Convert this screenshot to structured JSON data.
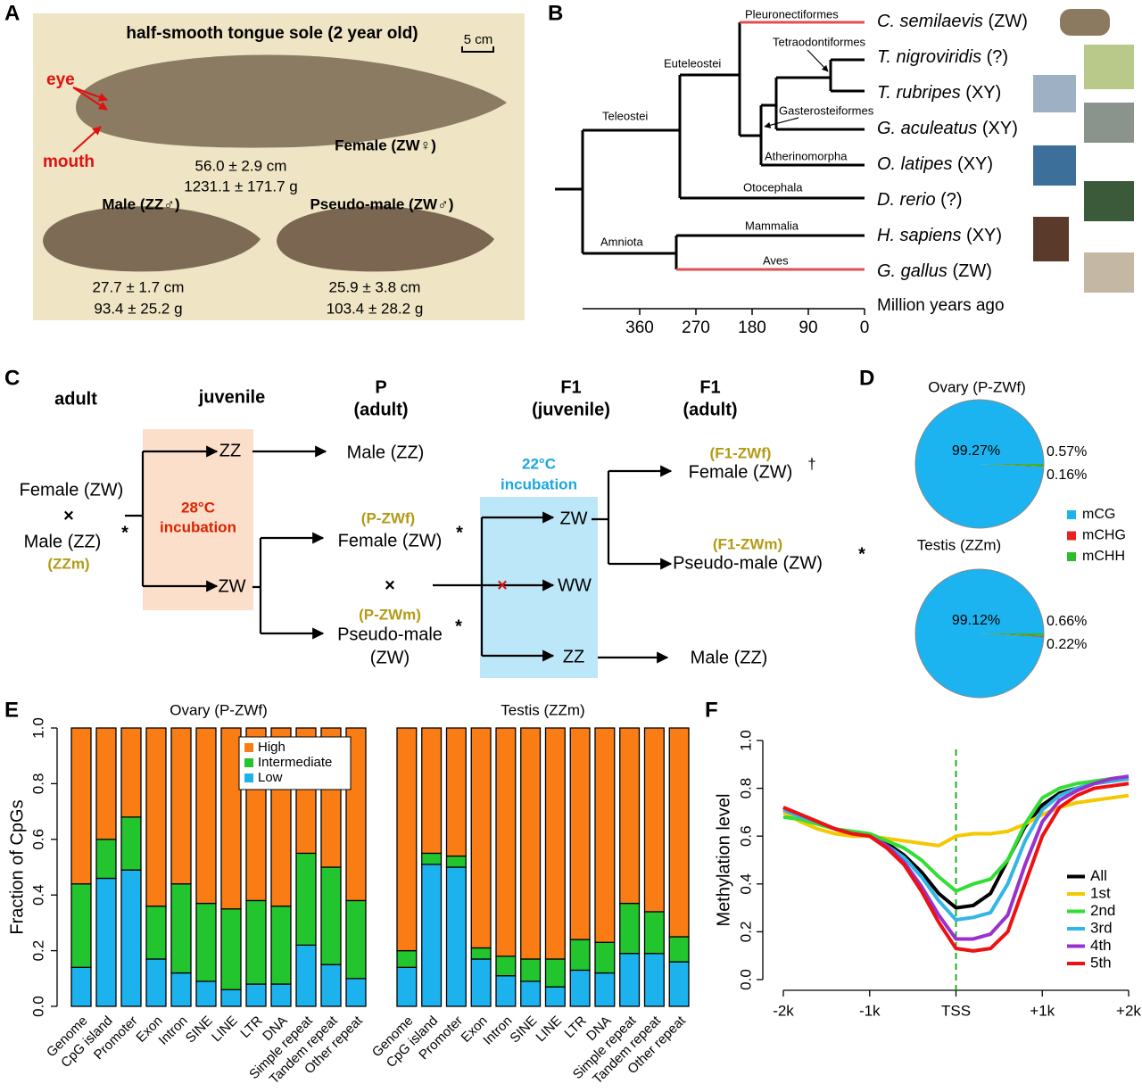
{
  "panel_labels": [
    "A",
    "B",
    "C",
    "D",
    "E",
    "F"
  ],
  "panel_a": {
    "title": "half-smooth tongue sole (2 year old)",
    "scale_bar": "5 cm",
    "eye": "eye",
    "mouth": "mouth",
    "fish": [
      {
        "label": "Female (ZW♀)",
        "length": "56.0 ± 2.9 cm",
        "weight": "1231.1 ± 171.7 g"
      },
      {
        "label": "Male (ZZ♂)",
        "length": "27.7 ± 1.7 cm",
        "weight": "93.4 ± 25.2 g"
      },
      {
        "label": "Pseudo-male (ZW♂)",
        "length": "25.9 ± 3.8 cm",
        "weight": "103.4 ± 28.2 g"
      }
    ]
  },
  "panel_b": {
    "leaves": [
      {
        "species": "C. semilaevis",
        "sex": "(ZW)"
      },
      {
        "species": "T. nigroviridis",
        "sex": "(?)"
      },
      {
        "species": "T. rubripes",
        "sex": "(XY)"
      },
      {
        "species": "G. aculeatus",
        "sex": "(XY)"
      },
      {
        "species": "O. latipes",
        "sex": "(XY)"
      },
      {
        "species": "D. rerio",
        "sex": "(?)"
      },
      {
        "species": "H. sapiens",
        "sex": "(XY)"
      },
      {
        "species": "G. gallus",
        "sex": "(ZW)"
      }
    ],
    "clades": [
      "Pleuronectiformes",
      "Tetraodontiformes",
      "Gasterosteiformes",
      "Atherinomorpha",
      "Euteleostei",
      "Teleostei",
      "Otocephala",
      "Amniota",
      "Mammalia",
      "Aves"
    ],
    "axis": {
      "label": "Million years ago",
      "ticks": [
        360,
        270,
        180,
        90,
        0
      ]
    }
  },
  "panel_c": {
    "headers": [
      "adult",
      "juvenile",
      "P",
      "(adult)",
      "F1",
      "(juvenile)",
      "F1",
      "(adult)"
    ],
    "parents": {
      "female": "Female (ZW)",
      "cross": "×",
      "male": "Male (ZZ)",
      "star": "*",
      "male_id": "(ZZm)"
    },
    "incubation_28": {
      "temp": "28°C",
      "label": "incubation"
    },
    "p_offspring": [
      "ZZ",
      "ZW"
    ],
    "p_adults": {
      "male": "Male (ZZ)",
      "female_id": "(P-ZWf)",
      "female": "Female (ZW)",
      "female_star": "*",
      "cross": "×",
      "pseudo_id": "(P-ZWm)",
      "pseudo": "Pseudo-male",
      "pseudo_star": "*",
      "pseudo_sex": "(ZW)"
    },
    "incubation_22": {
      "temp": "22°C",
      "label": "incubation"
    },
    "f1_offspring": [
      "ZW",
      "WW",
      "ZZ"
    ],
    "blocked": "×",
    "f1_adults": {
      "female_id": "(F1-ZWf)",
      "female": "Female (ZW)",
      "female_dagger": "†",
      "pseudo_id": "(F1-ZWm)",
      "pseudo": "Pseudo-male (ZW)",
      "pseudo_star": "*",
      "male": "Male (ZZ)"
    }
  },
  "chart_data": [
    {
      "type": "pie",
      "categories": [
        "mCG",
        "mCHG",
        "mCHH"
      ],
      "colors": [
        "#1cb4f0",
        "#e8231f",
        "#2bbd2b"
      ],
      "legend": "right",
      "series": [
        {
          "name": "Ovary (P-ZWf)",
          "values": [
            99.27,
            0.16,
            0.57
          ],
          "value_labels": [
            "99.27%",
            "0.16%",
            "0.57%"
          ]
        },
        {
          "name": "Testis (ZZm)",
          "values": [
            99.12,
            0.22,
            0.66
          ],
          "value_labels": [
            "99.12%",
            "0.22%",
            "0.66%"
          ]
        }
      ]
    },
    {
      "type": "bar",
      "stacked": true,
      "title": "Ovary (P-ZWf)",
      "ylabel": "Fraction of CpGs",
      "categories": [
        "Genome",
        "CpG island",
        "Promoter",
        "Exon",
        "Intron",
        "SINE",
        "LINE",
        "LTR",
        "DNA",
        "Simple repeat",
        "Tandem repeat",
        "Other repeat"
      ],
      "ylim": [
        0,
        1
      ],
      "yticks": [
        {
          "value": 0,
          "label": "0.0"
        },
        0.2,
        0.4,
        0.6,
        0.8,
        {
          "value": 1,
          "label": "1.0"
        }
      ],
      "legend": "top-right",
      "series": [
        {
          "name": "Low",
          "color": "#1cb2ee",
          "values": [
            0.14,
            0.46,
            0.49,
            0.17,
            0.12,
            0.09,
            0.06,
            0.08,
            0.08,
            0.22,
            0.15,
            0.1
          ]
        },
        {
          "name": "Intermediate",
          "color": "#22c52d",
          "values": [
            0.3,
            0.14,
            0.19,
            0.19,
            0.32,
            0.28,
            0.29,
            0.3,
            0.28,
            0.33,
            0.35,
            0.28
          ]
        },
        {
          "name": "High",
          "color": "#f97d14",
          "values": [
            0.56,
            0.4,
            0.32,
            0.64,
            0.56,
            0.63,
            0.65,
            0.62,
            0.64,
            0.45,
            0.5,
            0.62
          ]
        }
      ]
    },
    {
      "type": "bar",
      "stacked": true,
      "title": "Testis (ZZm)",
      "categories": [
        "Genome",
        "CpG island",
        "Promoter",
        "Exon",
        "Intron",
        "SINE",
        "LINE",
        "LTR",
        "DNA",
        "Simple repeat",
        "Tandem repeat",
        "Other repeat"
      ],
      "ylim": [
        0,
        1
      ],
      "series": [
        {
          "color": "#1cb2ee",
          "values": [
            0.14,
            0.51,
            0.5,
            0.17,
            0.11,
            0.09,
            0.07,
            0.13,
            0.12,
            0.19,
            0.19,
            0.16
          ]
        },
        {
          "color": "#22c52d",
          "values": [
            0.06,
            0.04,
            0.04,
            0.04,
            0.07,
            0.08,
            0.1,
            0.11,
            0.11,
            0.18,
            0.15,
            0.09
          ]
        },
        {
          "color": "#f97d14",
          "values": [
            0.8,
            0.45,
            0.46,
            0.79,
            0.82,
            0.83,
            0.83,
            0.76,
            0.77,
            0.63,
            0.66,
            0.75
          ]
        }
      ]
    },
    {
      "type": "line",
      "ylabel": "Methylation level",
      "x": [
        -2000,
        -1800,
        -1600,
        -1400,
        -1200,
        -1000,
        -800,
        -600,
        -400,
        -200,
        0,
        200,
        400,
        600,
        800,
        1000,
        1200,
        1400,
        1600,
        1800,
        2000
      ],
      "xlim": [
        -2000,
        2000
      ],
      "xticks": [
        {
          "value": -2000,
          "label": "-2k"
        },
        {
          "value": -1000,
          "label": "-1k"
        },
        {
          "value": 0,
          "label": "TSS"
        },
        {
          "value": 1000,
          "label": "+1k"
        },
        {
          "value": 2000,
          "label": "+2k"
        }
      ],
      "ylim": [
        0,
        1
      ],
      "yticks": [
        {
          "value": 0,
          "label": "0.0"
        },
        0.2,
        0.4,
        0.6,
        0.8,
        {
          "value": 1,
          "label": "1.0"
        }
      ],
      "vline": 0,
      "vline_color": "#22aa22",
      "legend": "bottom-right",
      "series": [
        {
          "name": "All",
          "color": "#000000",
          "values": [
            0.72,
            0.69,
            0.66,
            0.63,
            0.61,
            0.6,
            0.57,
            0.52,
            0.45,
            0.36,
            0.3,
            0.31,
            0.36,
            0.5,
            0.64,
            0.73,
            0.78,
            0.8,
            0.82,
            0.83,
            0.84
          ]
        },
        {
          "name": "1st",
          "color": "#f5c800",
          "values": [
            0.7,
            0.66,
            0.63,
            0.61,
            0.6,
            0.6,
            0.59,
            0.58,
            0.57,
            0.56,
            0.6,
            0.61,
            0.61,
            0.62,
            0.65,
            0.69,
            0.72,
            0.74,
            0.75,
            0.76,
            0.77
          ]
        },
        {
          "name": "2nd",
          "color": "#33dd33",
          "values": [
            0.68,
            0.67,
            0.65,
            0.63,
            0.62,
            0.61,
            0.58,
            0.55,
            0.5,
            0.43,
            0.37,
            0.4,
            0.42,
            0.5,
            0.65,
            0.76,
            0.8,
            0.82,
            0.83,
            0.84,
            0.85
          ]
        },
        {
          "name": "3rd",
          "color": "#33b5e5",
          "values": [
            0.71,
            0.68,
            0.66,
            0.63,
            0.61,
            0.6,
            0.56,
            0.51,
            0.43,
            0.33,
            0.25,
            0.26,
            0.28,
            0.4,
            0.58,
            0.71,
            0.77,
            0.8,
            0.82,
            0.83,
            0.84
          ]
        },
        {
          "name": "4th",
          "color": "#9932cc",
          "values": [
            0.72,
            0.69,
            0.66,
            0.63,
            0.61,
            0.6,
            0.56,
            0.49,
            0.39,
            0.27,
            0.17,
            0.17,
            0.19,
            0.27,
            0.48,
            0.66,
            0.75,
            0.79,
            0.82,
            0.84,
            0.85
          ]
        },
        {
          "name": "5th",
          "color": "#ee1111",
          "values": [
            0.72,
            0.69,
            0.66,
            0.63,
            0.61,
            0.6,
            0.55,
            0.48,
            0.37,
            0.24,
            0.13,
            0.12,
            0.13,
            0.2,
            0.4,
            0.6,
            0.72,
            0.77,
            0.8,
            0.81,
            0.82
          ]
        }
      ]
    }
  ]
}
